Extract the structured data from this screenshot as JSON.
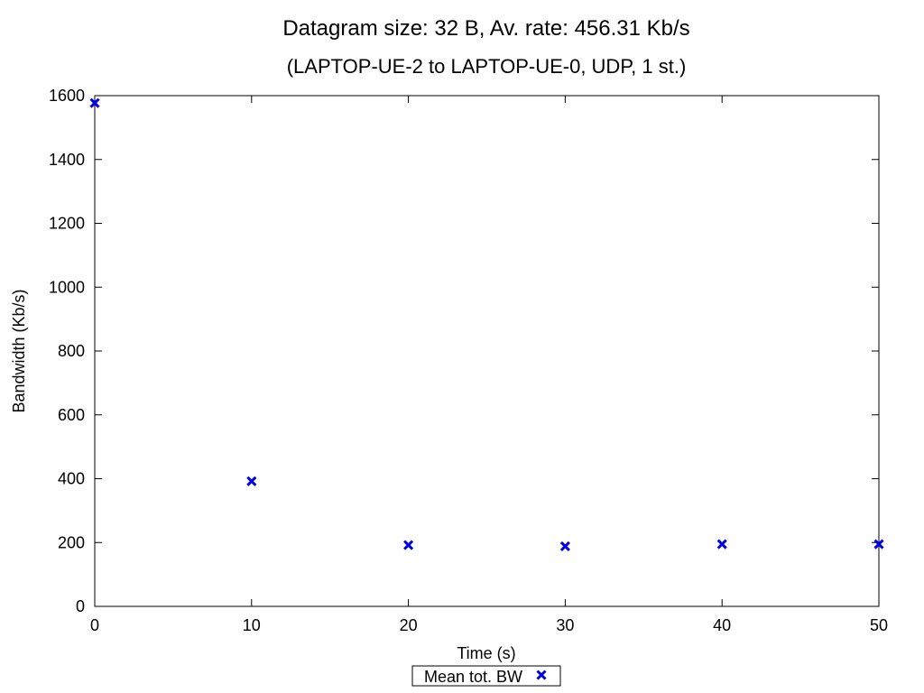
{
  "chart_data": {
    "type": "scatter",
    "title": "Datagram size: 32 B, Av. rate: 456.31 Kb/s",
    "subtitle": "(LAPTOP-UE-2 to LAPTOP-UE-0, UDP, 1 st.)",
    "xlabel": "Time (s)",
    "ylabel": "Bandwidth (Kb/s)",
    "xlim": [
      0,
      50
    ],
    "ylim": [
      0,
      1600
    ],
    "xticks": [
      0,
      10,
      20,
      30,
      40,
      50
    ],
    "yticks": [
      0,
      200,
      400,
      600,
      800,
      1000,
      1200,
      1400,
      1600
    ],
    "grid": false,
    "legend_position": "bottom-center",
    "series": [
      {
        "name": "Mean tot. BW",
        "marker": "x",
        "color": "#0000e0",
        "x": [
          0,
          10,
          20,
          30,
          40,
          50
        ],
        "y": [
          1577,
          392,
          192,
          188,
          195,
          195
        ]
      }
    ]
  }
}
